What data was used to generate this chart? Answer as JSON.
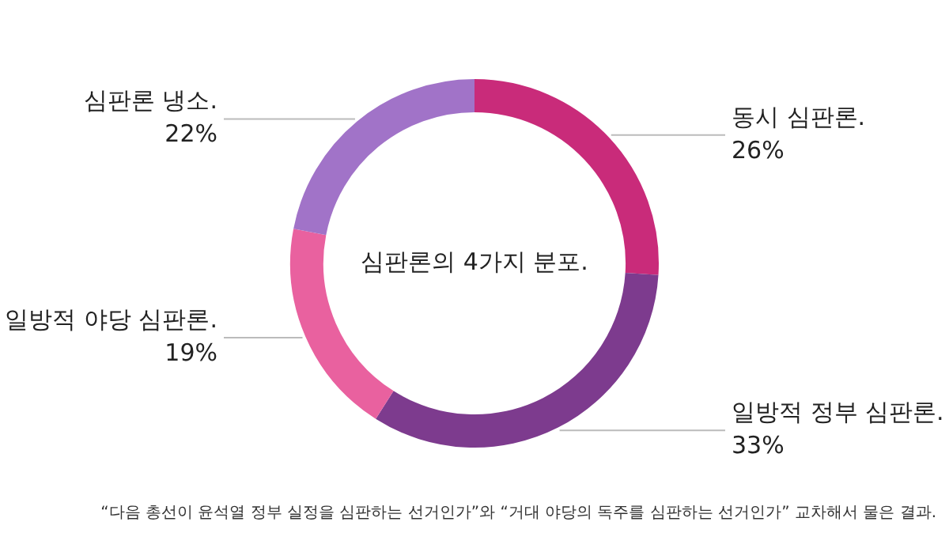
{
  "chart_data": {
    "type": "donut",
    "title": "심판론의 4가지 분포.",
    "categories": [
      "동시 심판론.",
      "일방적 정부 심판론.",
      "일방적 야당 심판론.",
      "심판론 냉소."
    ],
    "values": [
      26,
      33,
      19,
      22
    ],
    "value_labels": [
      "26%",
      "33%",
      "19%",
      "22%"
    ],
    "colors": [
      "#c92b7a",
      "#7d3b8e",
      "#e9619f",
      "#a173c8"
    ],
    "legend": false,
    "annotations": [
      "“다음 총선이 윤석열 정부 실정을 심판하는 선거인가”와 “거대 야당의 독주를 심판하는 선거인가” 교차해서 물은 결과."
    ]
  }
}
